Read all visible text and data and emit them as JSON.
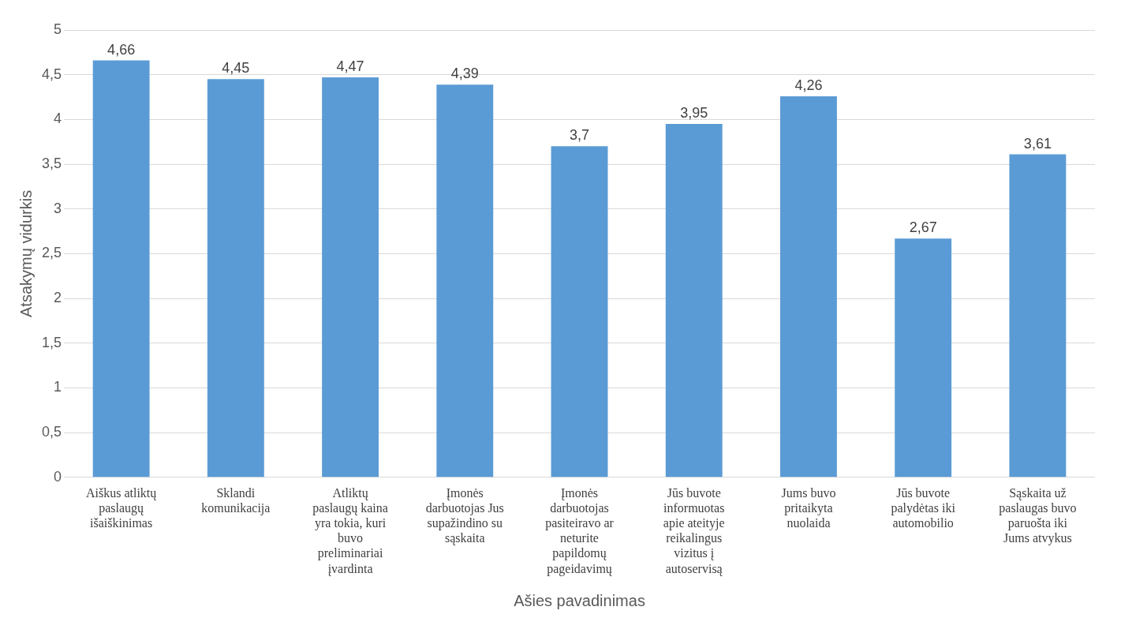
{
  "chart_data": {
    "type": "bar",
    "ylabel": "Atsakymų vidurkis",
    "xlabel": "Ašies pavadinimas",
    "categories": [
      "Aiškus atliktų paslaugų išaiškinimas",
      "Sklandi komunikacija",
      "Atliktų paslaugų kaina yra tokia, kuri buvo preliminariai įvardinta",
      "Įmonės darbuotojas Jus supažindino su sąskaita",
      "Įmonės darbuotojas pasiteiravo ar neturite papildomų pageidavimų",
      "Jūs buvote informuotas apie ateityje reikalingus vizitus į autoservisą",
      "Jums buvo pritaikyta nuolaida",
      "Jūs buvote palydėtas iki automobilio",
      "Sąskaita už paslaugas buvo paruošta iki Jums atvykus"
    ],
    "values": [
      4.66,
      4.45,
      4.47,
      4.39,
      3.7,
      3.95,
      4.26,
      2.67,
      3.61
    ],
    "value_labels": [
      "4,66",
      "4,45",
      "4,47",
      "4,39",
      "3,7",
      "3,95",
      "4,26",
      "2,67",
      "3,61"
    ],
    "color": "#5b9bd5",
    "ylim": [
      0,
      5
    ],
    "yticks": [
      0,
      {
        "value": 0.5,
        "label": "0,5"
      },
      1,
      {
        "value": 1.5,
        "label": "1,5"
      },
      2,
      {
        "value": 2.5,
        "label": "2,5"
      },
      3,
      {
        "value": 3.5,
        "label": "3,5"
      },
      4,
      {
        "value": 4.5,
        "label": "4,5"
      },
      5
    ],
    "grid": "y",
    "legend": false
  }
}
